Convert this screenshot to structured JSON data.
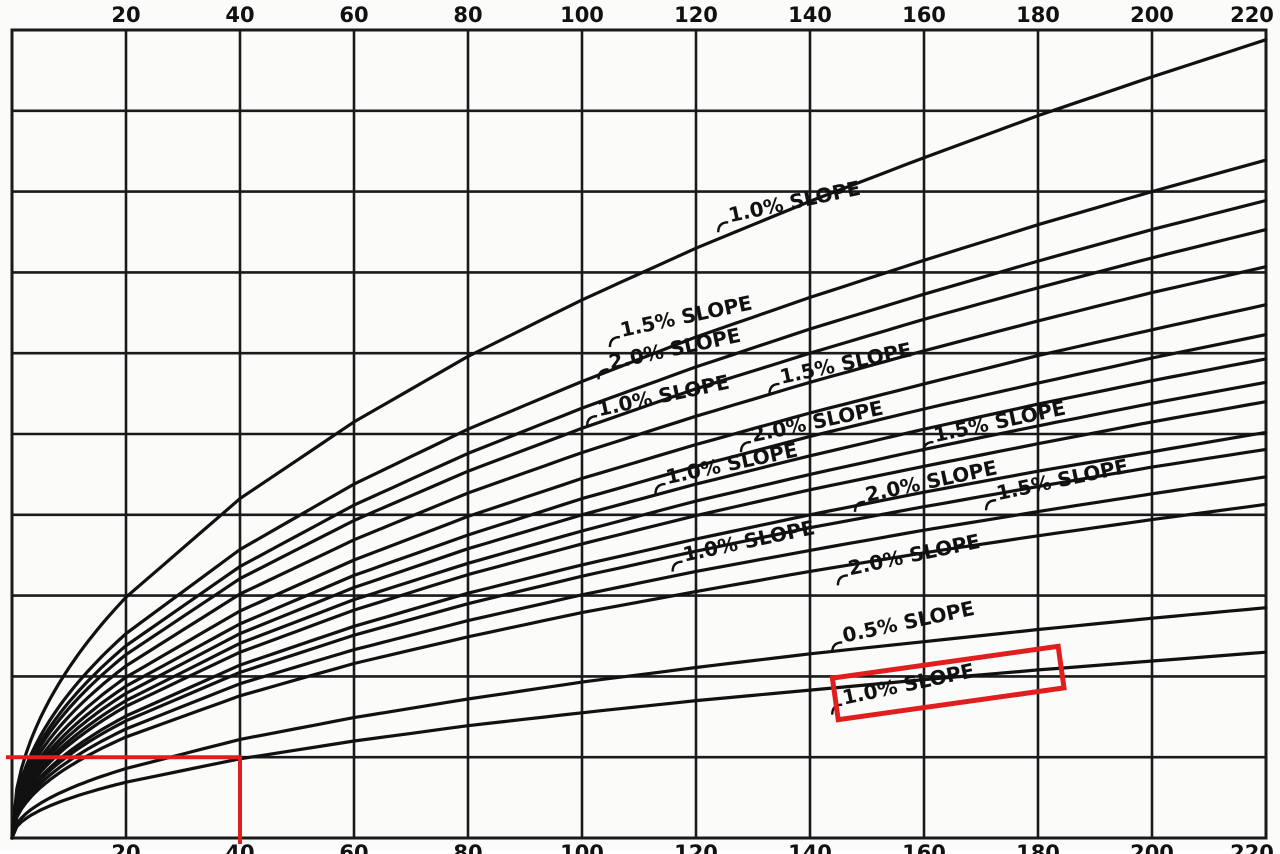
{
  "chart_data": {
    "type": "line",
    "title": "",
    "xlabel": "",
    "ylabel": "",
    "xlim": [
      0,
      220
    ],
    "ylim": [
      0,
      10
    ],
    "grid": true,
    "x_tick_labels_top": [
      "20",
      "40",
      "60",
      "80",
      "100",
      "120",
      "140",
      "160",
      "180",
      "200",
      "220"
    ],
    "x_tick_labels_bottom": [
      "20",
      "40",
      "60",
      "80",
      "100",
      "120",
      "140",
      "160",
      "180",
      "200",
      "220"
    ],
    "colors": {
      "curve": "#111111",
      "grid": "#1a1a1a",
      "highlight": "#e01e1e"
    },
    "series": [
      {
        "label": "1.0% SLOPE",
        "x": [
          0,
          20,
          40,
          60,
          80,
          100,
          120,
          140,
          160,
          180,
          200,
          220
        ],
        "y": [
          0,
          2.98,
          4.2,
          5.15,
          5.96,
          6.66,
          7.3,
          7.88,
          8.42,
          8.94,
          9.42,
          9.88
        ],
        "label_x": 126,
        "label_y": 7.62
      },
      {
        "x": [
          0,
          20,
          40,
          60,
          80,
          100,
          120,
          140,
          160,
          180,
          200,
          220
        ],
        "y": [
          0,
          2.53,
          3.57,
          4.38,
          5.06,
          5.65,
          6.2,
          6.69,
          7.15,
          7.59,
          8.0,
          8.39
        ]
      },
      {
        "label": "1.5% SLOPE",
        "x": [
          0,
          20,
          40,
          60,
          80,
          100,
          120,
          140,
          160,
          180,
          200,
          220
        ],
        "y": [
          0,
          2.38,
          3.36,
          4.12,
          4.76,
          5.32,
          5.83,
          6.3,
          6.73,
          7.14,
          7.53,
          7.89
        ],
        "label_x": 107,
        "label_y": 6.2
      },
      {
        "label": "2.0% SLOPE",
        "x": [
          0,
          20,
          40,
          60,
          80,
          100,
          120,
          140,
          160,
          180,
          200,
          220
        ],
        "y": [
          0,
          2.27,
          3.21,
          3.93,
          4.54,
          5.07,
          5.56,
          6.0,
          6.42,
          6.81,
          7.18,
          7.53
        ],
        "label_x": 105,
        "label_y": 5.8
      },
      {
        "label": "1.0% SLOPE",
        "x": [
          0,
          20,
          40,
          60,
          80,
          100,
          120,
          140,
          160,
          180,
          200,
          220
        ],
        "y": [
          0,
          2.13,
          3.02,
          3.69,
          4.27,
          4.77,
          5.22,
          5.64,
          6.03,
          6.4,
          6.75,
          7.07
        ],
        "label_x": 103,
        "label_y": 5.22
      },
      {
        "label": "1.5% SLOPE",
        "x": [
          0,
          20,
          40,
          60,
          80,
          100,
          120,
          140,
          160,
          180,
          200,
          220
        ],
        "y": [
          0,
          1.99,
          2.81,
          3.44,
          3.98,
          4.45,
          4.87,
          5.26,
          5.62,
          5.97,
          6.29,
          6.6
        ],
        "label_x": 135,
        "label_y": 5.62
      },
      {
        "x": [
          0,
          20,
          40,
          60,
          80,
          100,
          120,
          140,
          160,
          180,
          200,
          220
        ],
        "y": [
          0,
          1.88,
          2.65,
          3.25,
          3.75,
          4.2,
          4.6,
          4.97,
          5.31,
          5.63,
          5.94,
          6.23
        ]
      },
      {
        "label": "2.0% SLOPE",
        "x": [
          0,
          20,
          40,
          60,
          80,
          100,
          120,
          140,
          160,
          180,
          200,
          220
        ],
        "y": [
          0,
          1.79,
          2.53,
          3.1,
          3.58,
          4.0,
          4.38,
          4.73,
          5.06,
          5.37,
          5.66,
          5.93
        ],
        "label_x": 130,
        "label_y": 4.9
      },
      {
        "label": "1.5% SLOPE",
        "x": [
          0,
          20,
          40,
          60,
          80,
          100,
          120,
          140,
          160,
          180,
          200,
          220
        ],
        "y": [
          0,
          1.7,
          2.41,
          2.95,
          3.4,
          3.8,
          4.17,
          4.5,
          4.81,
          5.1,
          5.38,
          5.64
        ],
        "label_x": 162,
        "label_y": 4.9
      },
      {
        "label": "1.0% SLOPE",
        "x": [
          0,
          20,
          40,
          60,
          80,
          100,
          120,
          140,
          160,
          180,
          200,
          220
        ],
        "y": [
          0,
          1.63,
          2.3,
          2.82,
          3.26,
          3.64,
          3.99,
          4.31,
          4.6,
          4.88,
          5.15,
          5.4
        ],
        "label_x": 115,
        "label_y": 4.38
      },
      {
        "label": "2.0% SLOPE",
        "x": [
          0,
          20,
          40,
          60,
          80,
          100,
          120,
          140,
          160,
          180,
          200,
          220
        ],
        "y": [
          0,
          1.51,
          2.14,
          2.62,
          3.03,
          3.38,
          3.7,
          4.0,
          4.28,
          4.54,
          4.78,
          5.02
        ],
        "label_x": 150,
        "label_y": 4.16
      },
      {
        "label": "1.5% SLOPE",
        "x": [
          0,
          20,
          40,
          60,
          80,
          100,
          120,
          140,
          160,
          180,
          200,
          220
        ],
        "y": [
          0,
          1.45,
          2.05,
          2.51,
          2.9,
          3.24,
          3.55,
          3.84,
          4.1,
          4.35,
          4.59,
          4.81
        ],
        "label_x": 173,
        "label_y": 4.18
      },
      {
        "label": "1.0% SLOPE",
        "x": [
          0,
          20,
          40,
          60,
          80,
          100,
          120,
          140,
          160,
          180,
          200,
          220
        ],
        "y": [
          0,
          1.35,
          1.91,
          2.33,
          2.69,
          3.01,
          3.3,
          3.56,
          3.81,
          4.04,
          4.26,
          4.47
        ],
        "label_x": 118,
        "label_y": 3.42
      },
      {
        "label": "2.0% SLOPE",
        "x": [
          0,
          20,
          40,
          60,
          80,
          100,
          120,
          140,
          160,
          180,
          200,
          220
        ],
        "y": [
          0,
          1.25,
          1.76,
          2.16,
          2.49,
          2.79,
          3.05,
          3.3,
          3.53,
          3.74,
          3.94,
          4.13
        ],
        "label_x": 147,
        "label_y": 3.25
      },
      {
        "label": "0.5% SLOPE",
        "x": [
          0,
          20,
          40,
          60,
          80,
          100,
          120,
          140,
          160,
          180,
          200,
          220
        ],
        "y": [
          0,
          0.86,
          1.22,
          1.49,
          1.72,
          1.93,
          2.11,
          2.28,
          2.43,
          2.58,
          2.72,
          2.85
        ],
        "label_x": 146,
        "label_y": 2.42
      },
      {
        "label": "1.0% SLOPE",
        "x": [
          0,
          20,
          40,
          60,
          80,
          100,
          120,
          140,
          160,
          180,
          200,
          220
        ],
        "y": [
          0,
          0.69,
          0.98,
          1.2,
          1.39,
          1.55,
          1.7,
          1.83,
          1.96,
          2.08,
          2.19,
          2.3
        ],
        "label_x": 146,
        "label_y": 1.65,
        "highlighted": true
      }
    ],
    "highlight_region": {
      "x": [
        0,
        40
      ],
      "y": [
        0,
        1.0
      ]
    }
  }
}
